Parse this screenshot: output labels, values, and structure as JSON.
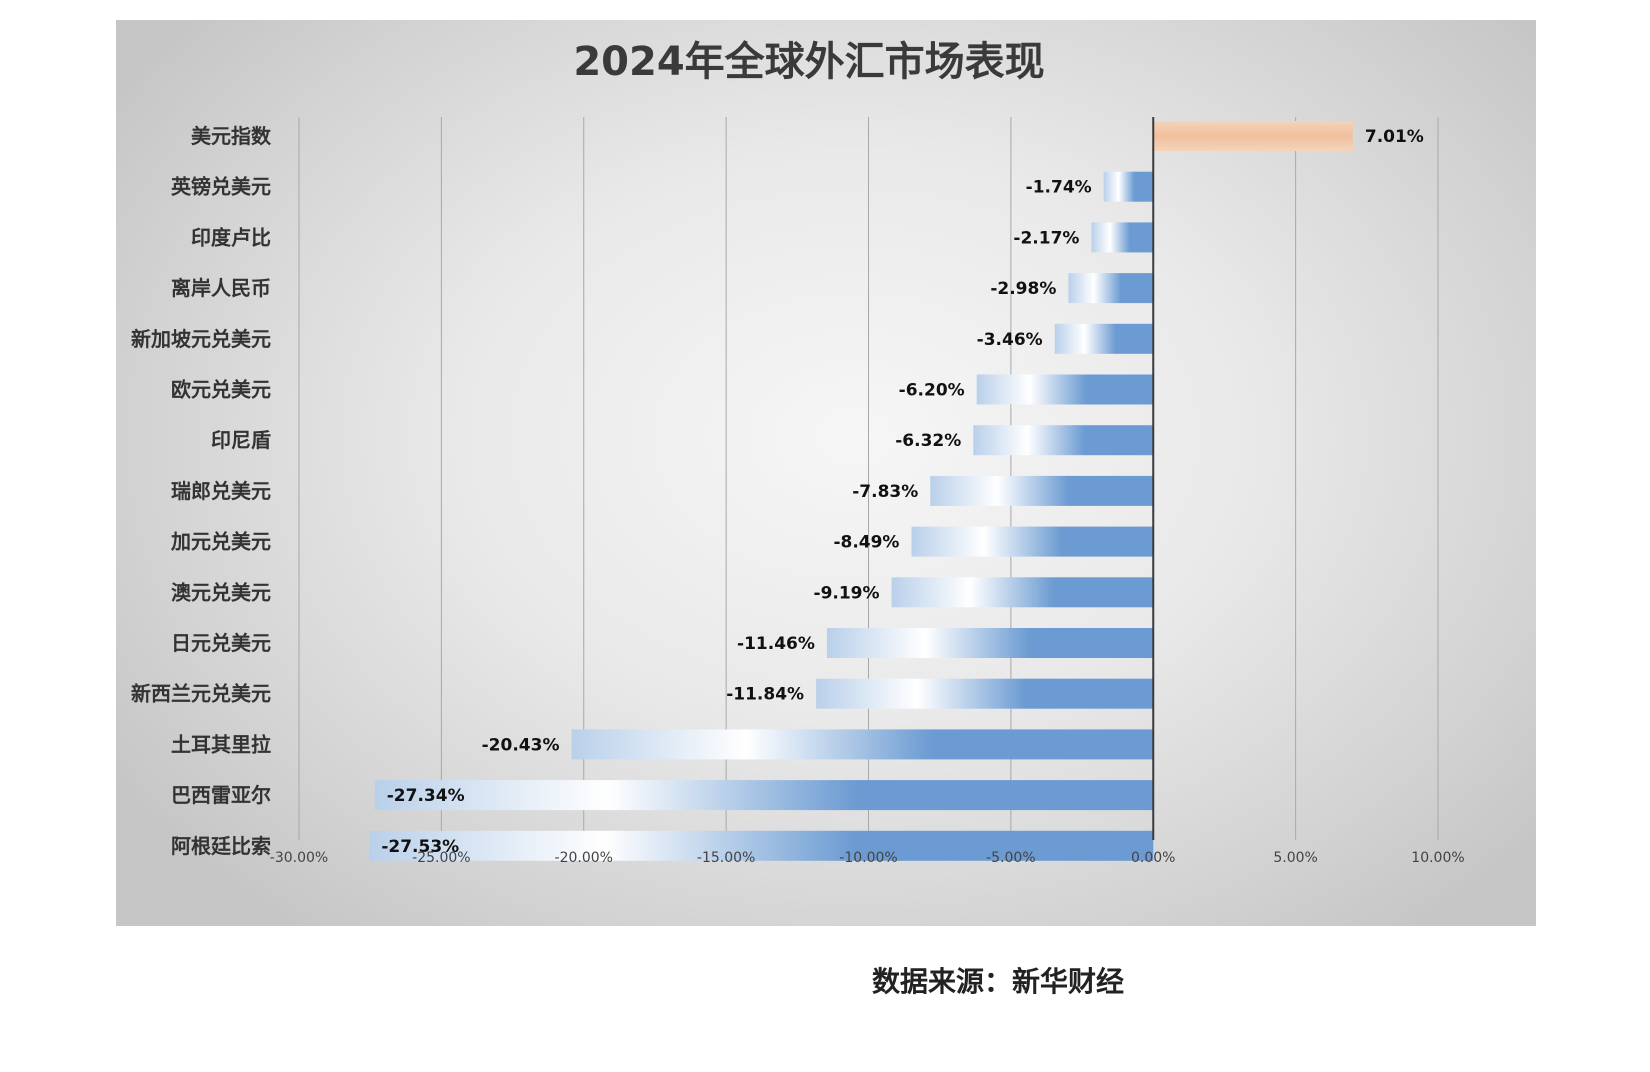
{
  "chart_data": {
    "type": "bar",
    "orientation": "horizontal",
    "title": "2024年全球外汇市场表现",
    "categories": [
      "美元指数",
      "英镑兑美元",
      "印度卢比",
      "离岸人民币",
      "新加坡元兑美元",
      "欧元兑美元",
      "印尼盾",
      "瑞郎兑美元",
      "加元兑美元",
      "澳元兑美元",
      "日元兑美元",
      "新西兰元兑美元",
      "土耳其里拉",
      "巴西雷亚尔",
      "阿根廷比索"
    ],
    "values": [
      7.01,
      -1.74,
      -2.17,
      -2.98,
      -3.46,
      -6.2,
      -6.32,
      -7.83,
      -8.49,
      -9.19,
      -11.46,
      -11.84,
      -20.43,
      -27.34,
      -27.53
    ],
    "data_labels": [
      "7.01%",
      "-1.74%",
      "-2.17%",
      "-2.98%",
      "-3.46%",
      "-6.20%",
      "-6.32%",
      "-7.83%",
      "-8.49%",
      "-9.19%",
      "-11.46%",
      "-11.84%",
      "-20.43%",
      "-27.34%",
      "-27.53%"
    ],
    "xlim": [
      -30,
      10
    ],
    "x_ticks": [
      -30,
      -25,
      -20,
      -15,
      -10,
      -5,
      0,
      5,
      10
    ],
    "x_tick_labels": [
      "-30.00%",
      "-25.00%",
      "-20.00%",
      "-15.00%",
      "-10.00%",
      "-5.00%",
      "0.00%",
      "5.00%",
      "10.00%"
    ],
    "xlabel": "",
    "ylabel": "",
    "grid": true,
    "legend": "none",
    "colors": {
      "positive": "#f2c4a2",
      "negative": "#6b9bd2"
    }
  },
  "source": "数据来源：新华财经"
}
